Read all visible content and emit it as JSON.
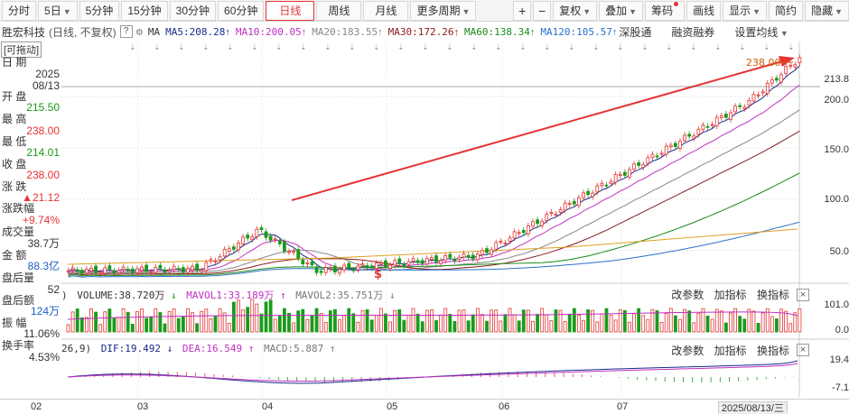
{
  "toolbar": {
    "periods": [
      "分时",
      "5日",
      "5分钟",
      "15分钟",
      "30分钟",
      "60分钟",
      "日线",
      "周线",
      "月线",
      "更多周期"
    ],
    "active_period": "日线",
    "right_tools": [
      "复权",
      "叠加",
      "筹码",
      "画线",
      "显示",
      "简约",
      "隐藏"
    ]
  },
  "ma": {
    "stock_name": "胜宏科技",
    "mode": "(日线, 不复权)",
    "label": "MA",
    "items": [
      {
        "text": "MA5:208.28",
        "color": "#1a2a8a"
      },
      {
        "text": "MA10:200.05",
        "color": "#c030c0"
      },
      {
        "text": "MA20:183.55",
        "color": "#888888"
      },
      {
        "text": "MA30:172.26",
        "color": "#8a1a1a"
      },
      {
        "text": "MA60:138.34",
        "color": "#1a8a1a"
      },
      {
        "text": "MA120:105.57",
        "color": "#2a70c8"
      }
    ],
    "link1": "深股通",
    "link2": "融资融券",
    "link3": "设置均线"
  },
  "info": {
    "tag": "[可拖动]",
    "date_label": "日 期",
    "date_year": "2025",
    "date_day": "08/13",
    "open_label": "开 盘",
    "open_value": "215.50",
    "high_label": "最 高",
    "high_value": "238.00",
    "low_label": "最 低",
    "low_value": "214.01",
    "close_label": "收 盘",
    "close_value": "238.00",
    "change_label": "涨 跌",
    "change_value": "▲21.12",
    "pct_label": "涨跌幅",
    "pct_value": "+9.74%",
    "vol_label": "成交量",
    "vol_value": "38.7万",
    "amt_label": "金 额",
    "amt_value": "88.3亿",
    "after_vol_label": "盘后量",
    "after_vol_value": "52",
    "after_amt_label": "盘后额",
    "after_amt_value": "124万",
    "amp_label": "振 幅",
    "amp_value": "11.06%",
    "turn_label": "换手率",
    "turn_value": "4.53%"
  },
  "price_axis": [
    "213.8",
    "200.0",
    "150.0",
    "100.0",
    "50.0"
  ],
  "annot_high": "238.00",
  "annot_low": "$",
  "volume": {
    "legend_prefix": ")",
    "v": "VOLUME:38.720万",
    "m1": "MAVOL1:33.189万",
    "m2": "MAVOL2:35.751万",
    "axis": [
      "101.0",
      "0.0"
    ]
  },
  "macd": {
    "prefix": "26,9)",
    "dif": "DIF:19.492",
    "dea": "DEA:16.549",
    "macd": "MACD:5.887",
    "axis": [
      "19.4",
      "-7.1"
    ]
  },
  "sub_tools": [
    "改参数",
    "加指标",
    "换指标"
  ],
  "x_axis": [
    "02",
    "03",
    "04",
    "05",
    "06",
    "07"
  ],
  "current_date": "2025/08/13/三",
  "chart_data": {
    "type": "candlestick",
    "price_range": [
      25,
      245
    ],
    "last": {
      "open": 215.5,
      "high": 238.0,
      "low": 214.01,
      "close": 238.0
    }
  }
}
